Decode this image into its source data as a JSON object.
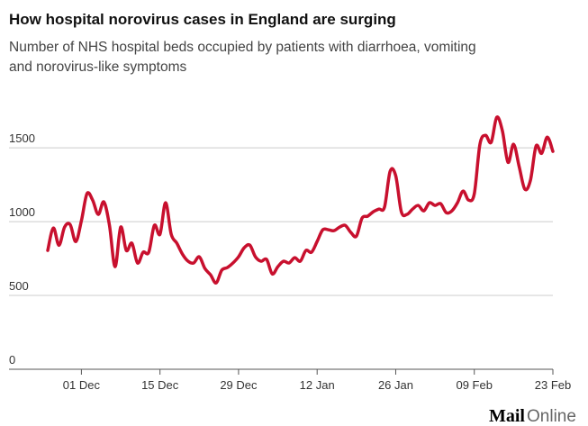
{
  "chart_data": {
    "type": "line",
    "title": "How hospital norovirus cases in England are surging",
    "subtitle_lines": [
      "Number of NHS hospital beds occupied by patients with diarrhoea, vomiting",
      "and norovirus-like symptoms"
    ],
    "categories": [
      null,
      null,
      null,
      null,
      null,
      null,
      "01 Dec",
      null,
      null,
      null,
      null,
      null,
      null,
      null,
      null,
      null,
      null,
      null,
      null,
      null,
      "15 Dec",
      null,
      null,
      null,
      null,
      null,
      null,
      null,
      null,
      null,
      null,
      null,
      null,
      null,
      "29 Dec",
      null,
      null,
      null,
      null,
      null,
      null,
      null,
      null,
      null,
      null,
      null,
      null,
      null,
      "12 Jan",
      null,
      null,
      null,
      null,
      null,
      null,
      null,
      null,
      null,
      null,
      null,
      null,
      null,
      "26 Jan",
      null,
      null,
      null,
      null,
      null,
      null,
      null,
      null,
      null,
      null,
      null,
      null,
      null,
      "09 Feb",
      null,
      null,
      null,
      null,
      null,
      null,
      null,
      null,
      null,
      null,
      null,
      null,
      null,
      "23 Feb"
    ],
    "values": [
      805,
      957,
      840,
      963,
      980,
      865,
      1006,
      1190,
      1146,
      1049,
      1134,
      975,
      695,
      963,
      805,
      854,
      720,
      793,
      793,
      975,
      915,
      1128,
      915,
      854,
      780,
      732,
      720,
      762,
      683,
      640,
      585,
      671,
      689,
      720,
      762,
      823,
      841,
      762,
      732,
      744,
      646,
      695,
      732,
      720,
      756,
      732,
      805,
      793,
      866,
      945,
      945,
      939,
      963,
      975,
      927,
      902,
      1024,
      1037,
      1067,
      1085,
      1098,
      1341,
      1311,
      1067,
      1049,
      1085,
      1110,
      1073,
      1128,
      1110,
      1122,
      1061,
      1073,
      1128,
      1207,
      1146,
      1189,
      1524,
      1585,
      1537,
      1707,
      1616,
      1402,
      1524,
      1372,
      1220,
      1280,
      1512,
      1463,
      1573,
      1476
    ],
    "color": "#c8102e",
    "ylim": [
      0,
      1800
    ],
    "yticks": [
      0,
      500,
      1000,
      1500
    ],
    "grid": true,
    "logo_mail": "Mail",
    "logo_online": "Online"
  }
}
